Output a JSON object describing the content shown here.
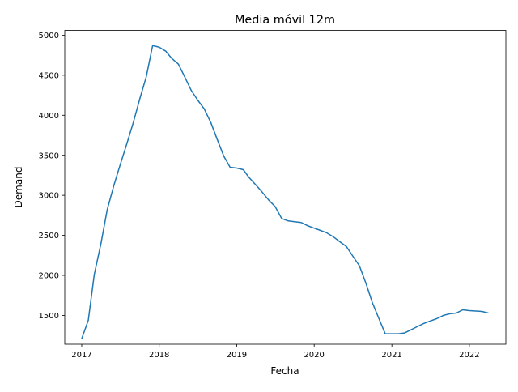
{
  "chart_data": {
    "type": "line",
    "title": "Media móvil 12m",
    "xlabel": "Fecha",
    "ylabel": "Demand",
    "xlim": [
      "2016-10-13",
      "2022-06-22"
    ],
    "ylim": [
      1140,
      5060
    ],
    "grid": false,
    "line_color": "#1f77b4",
    "x_ticks": [
      {
        "date": "2017-01-01",
        "label": "2017"
      },
      {
        "date": "2018-01-01",
        "label": "2018"
      },
      {
        "date": "2019-01-01",
        "label": "2019"
      },
      {
        "date": "2020-01-01",
        "label": "2020"
      },
      {
        "date": "2021-01-01",
        "label": "2021"
      },
      {
        "date": "2022-01-01",
        "label": "2022"
      }
    ],
    "y_ticks": [
      {
        "value": 1500,
        "label": "1500"
      },
      {
        "value": 2000,
        "label": "2000"
      },
      {
        "value": 2500,
        "label": "2500"
      },
      {
        "value": 3000,
        "label": "3000"
      },
      {
        "value": 3500,
        "label": "3500"
      },
      {
        "value": 4000,
        "label": "4000"
      },
      {
        "value": 4500,
        "label": "4500"
      },
      {
        "value": 5000,
        "label": "5000"
      }
    ],
    "series": [
      {
        "x": [
          "2017-01-01",
          "2017-02-01",
          "2017-03-01",
          "2017-04-01",
          "2017-05-01",
          "2017-06-01",
          "2017-07-01",
          "2017-08-01",
          "2017-09-01",
          "2017-10-01",
          "2017-11-01",
          "2017-12-01",
          "2018-01-01",
          "2018-02-01",
          "2018-03-01",
          "2018-04-01",
          "2018-05-01",
          "2018-06-01",
          "2018-07-01",
          "2018-08-01",
          "2018-09-01",
          "2018-10-01",
          "2018-11-01",
          "2018-12-01",
          "2019-01-01",
          "2019-02-01",
          "2019-03-01",
          "2019-04-01",
          "2019-05-01",
          "2019-06-01",
          "2019-07-01",
          "2019-08-01",
          "2019-09-01",
          "2019-10-01",
          "2019-11-01",
          "2019-12-01",
          "2020-01-01",
          "2020-02-01",
          "2020-03-01",
          "2020-04-01",
          "2020-05-01",
          "2020-06-01",
          "2020-07-01",
          "2020-08-01",
          "2020-09-01",
          "2020-10-01",
          "2020-11-01",
          "2020-12-01",
          "2021-01-01",
          "2021-02-01",
          "2021-03-01",
          "2021-04-01",
          "2021-05-01",
          "2021-06-01",
          "2021-07-01",
          "2021-08-01",
          "2021-09-01",
          "2021-10-01",
          "2021-11-01",
          "2021-12-01",
          "2022-01-01",
          "2022-02-01",
          "2022-03-01",
          "2022-04-01"
        ],
        "values": [
          1210,
          1440,
          2010,
          2390,
          2820,
          3120,
          3380,
          3640,
          3910,
          4200,
          4480,
          4870,
          4850,
          4800,
          4710,
          4640,
          4480,
          4310,
          4190,
          4080,
          3910,
          3700,
          3490,
          3350,
          3340,
          3320,
          3220,
          3130,
          3040,
          2940,
          2860,
          2710,
          2680,
          2670,
          2660,
          2620,
          2590,
          2560,
          2530,
          2480,
          2420,
          2360,
          2240,
          2120,
          1900,
          1660,
          1460,
          1270,
          1270,
          1270,
          1280,
          1320,
          1360,
          1400,
          1430,
          1460,
          1500,
          1520,
          1530,
          1570,
          1560,
          1555,
          1550,
          1530
        ]
      }
    ]
  }
}
